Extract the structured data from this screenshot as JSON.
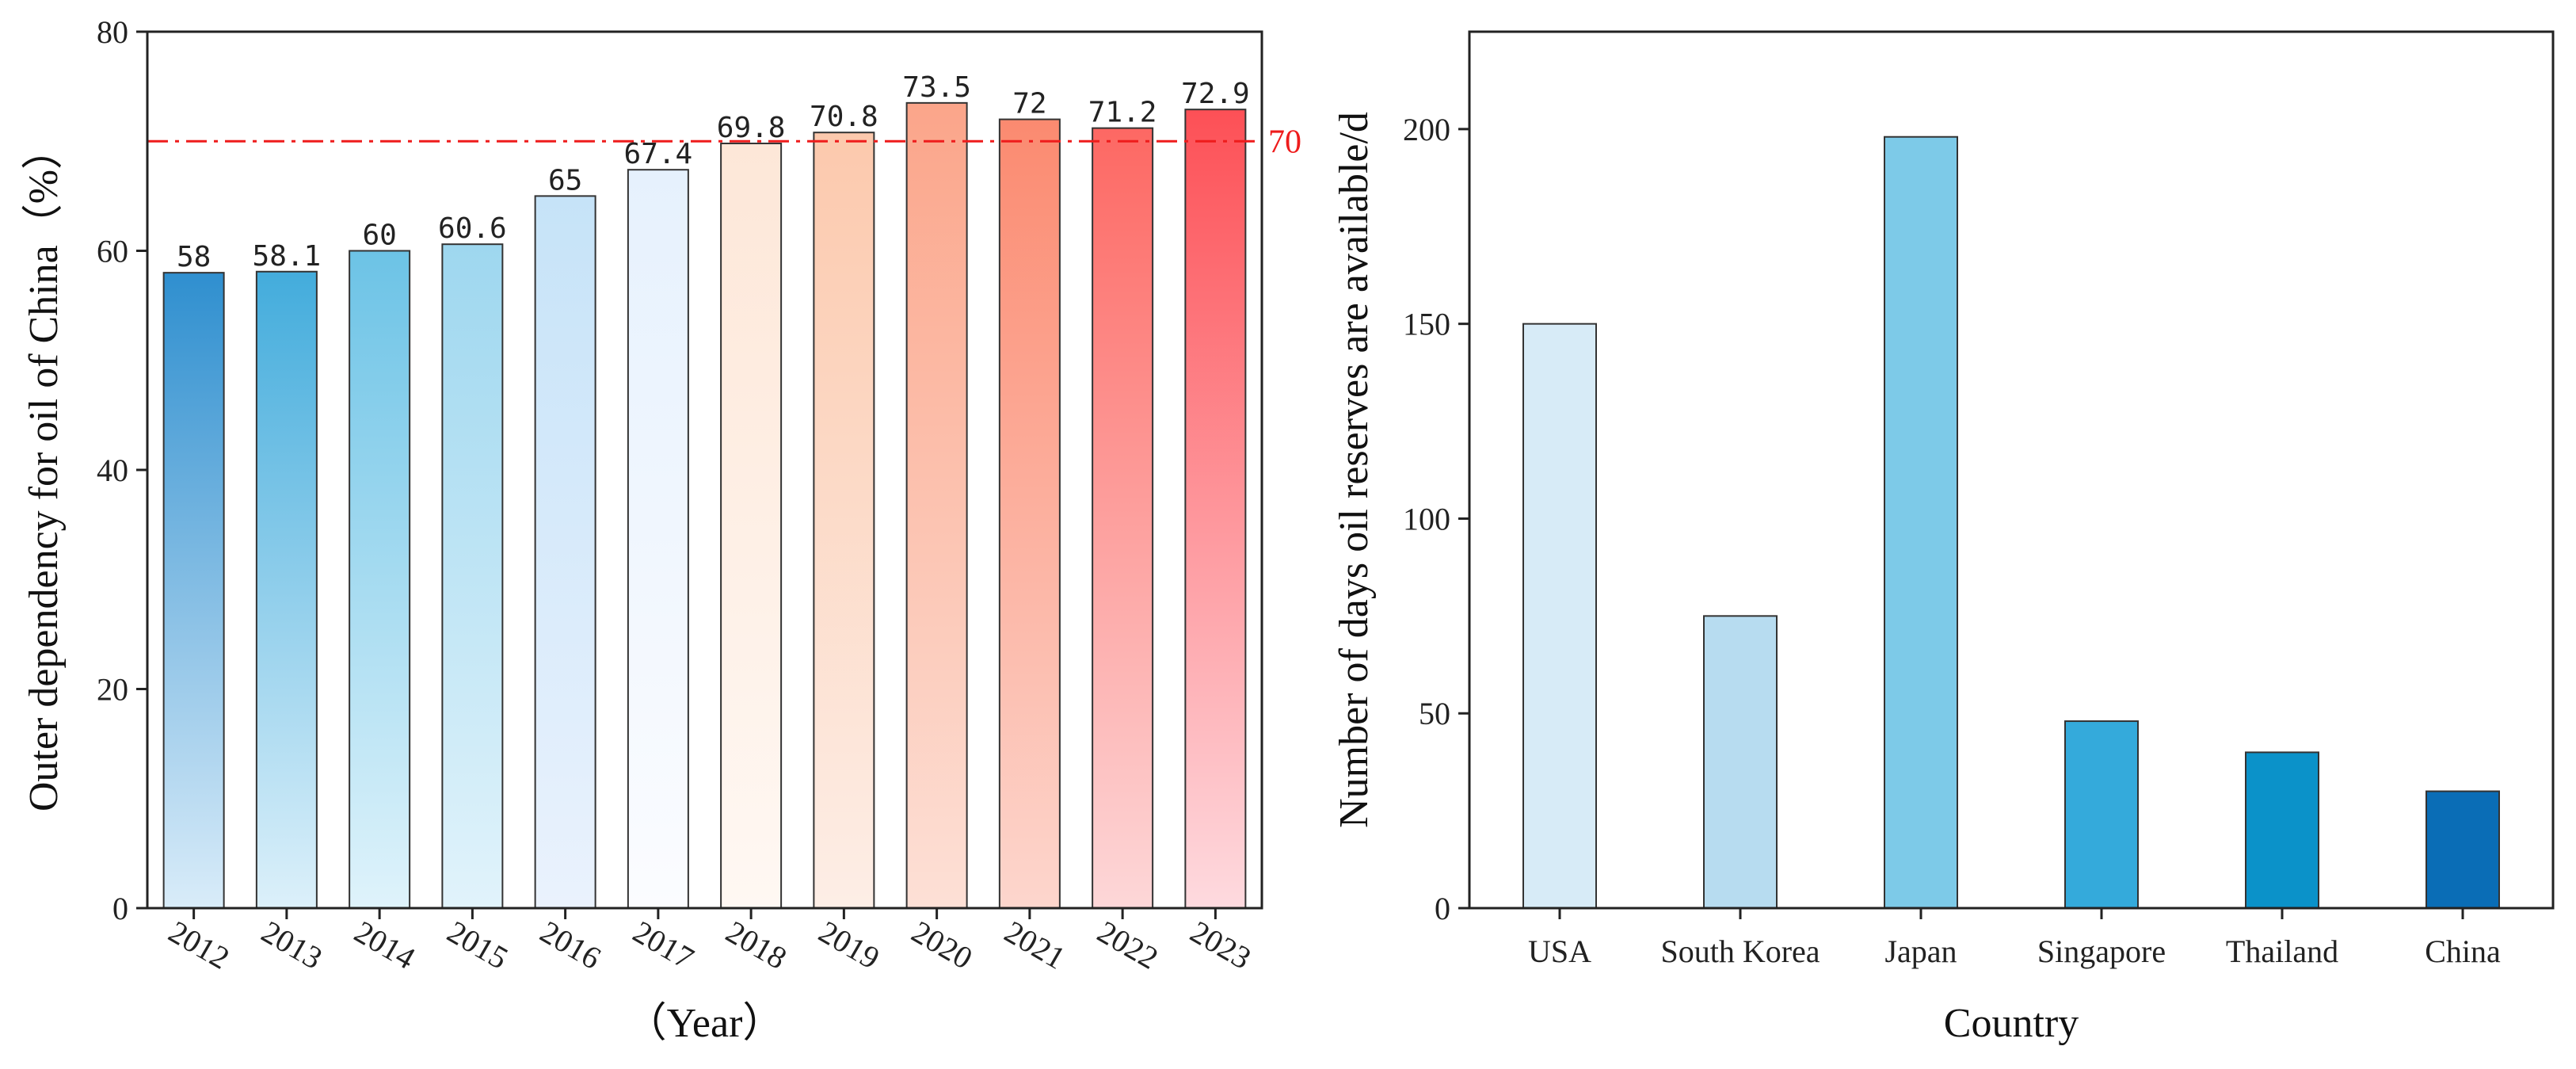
{
  "chart_data": [
    {
      "type": "bar",
      "title": "",
      "xlabel": "（Year）",
      "ylabel": "Outer dependency for oil of China（%）",
      "categories": [
        "2012",
        "2013",
        "2014",
        "2015",
        "2016",
        "2017",
        "2018",
        "2019",
        "2020",
        "2021",
        "2022",
        "2023"
      ],
      "values": [
        58,
        58.1,
        60,
        60.6,
        65,
        67.4,
        69.8,
        70.8,
        73.5,
        72,
        71.2,
        72.9
      ],
      "value_labels": [
        "58",
        "58.1",
        "60",
        "60.6",
        "65",
        "67.4",
        "69.8",
        "70.8",
        "73.5",
        "72",
        "71.2",
        "72.9"
      ],
      "ylim": [
        0,
        80
      ],
      "yticks": [
        0,
        20,
        40,
        60,
        80
      ],
      "reference_line": {
        "value": 70,
        "label": "70",
        "color": "#ee1c1c",
        "style": "dash-dot"
      },
      "bar_gradients": [
        [
          "#2f8fcf",
          "#d9ecf9"
        ],
        [
          "#43acdc",
          "#dcf0fa"
        ],
        [
          "#6cc3e6",
          "#dff3fb"
        ],
        [
          "#9ed7ef",
          "#e1f3fb"
        ],
        [
          "#c6e3f8",
          "#eaf2fd"
        ],
        [
          "#e6f1fd",
          "#fbfcff"
        ],
        [
          "#fde7d8",
          "#fff8f3"
        ],
        [
          "#fcc9ad",
          "#fdeee6"
        ],
        [
          "#fba58a",
          "#fde0d6"
        ],
        [
          "#fb8a70",
          "#fdd6cd"
        ],
        [
          "#fd6863",
          "#fdd7d8"
        ],
        [
          "#fd5056",
          "#fedadf"
        ]
      ]
    },
    {
      "type": "bar",
      "title": "",
      "xlabel": "Country",
      "ylabel": "Number of days oil reserves are available/d",
      "categories": [
        "USA",
        "South Korea",
        "Japan",
        "Singapore",
        "Thailand",
        "China"
      ],
      "values": [
        150,
        75,
        198,
        48,
        40,
        30
      ],
      "ylim": [
        0,
        225
      ],
      "yticks": [
        0,
        50,
        100,
        150,
        200
      ],
      "bar_colors": [
        "#d7ebf7",
        "#b7dcf0",
        "#7dcae8",
        "#34aadb",
        "#0b92c9",
        "#0a6db6"
      ]
    }
  ]
}
